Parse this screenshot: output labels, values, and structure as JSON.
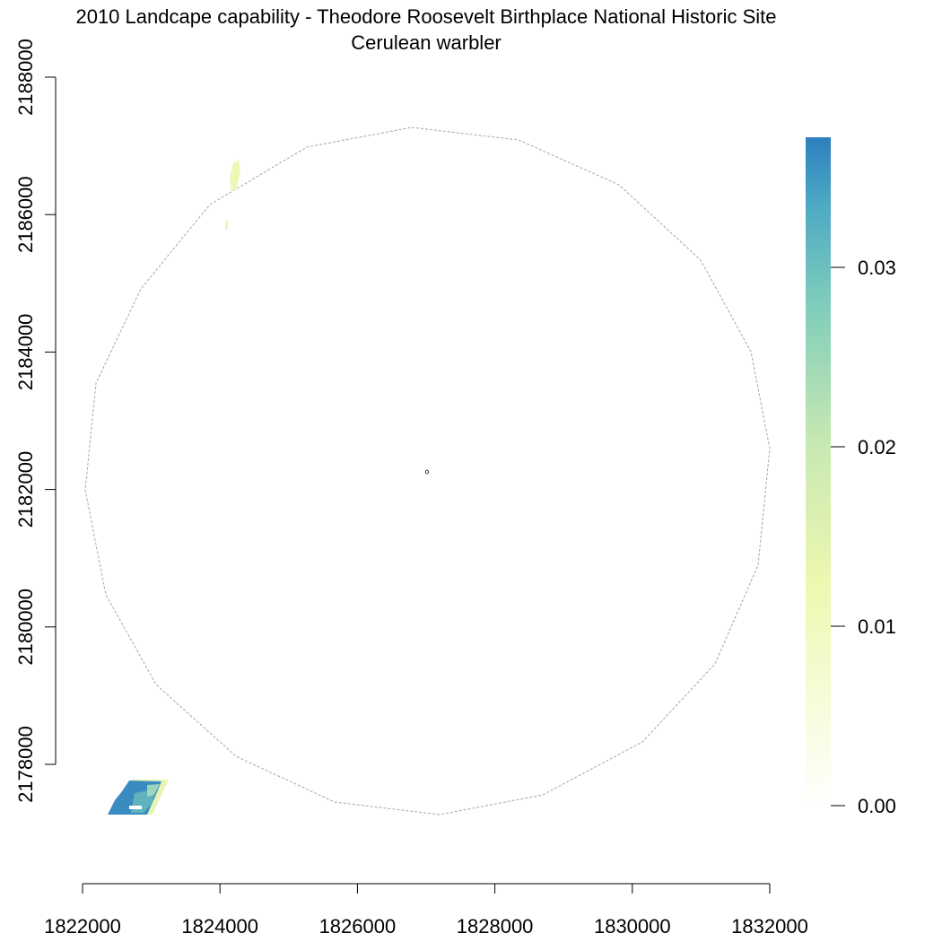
{
  "title": "2010 Landcape capability - Theodore Roosevelt Birthplace National Historic Site",
  "subtitle": "Cerulean warbler",
  "map": {
    "x_axis": {
      "range": [
        1822000,
        1832000
      ],
      "ticks": [
        "1822000",
        "1824000",
        "1826000",
        "1828000",
        "1830000",
        "1832000"
      ]
    },
    "y_axis": {
      "range": [
        2178000,
        2188000
      ],
      "ticks": [
        "2178000",
        "2180000",
        "2182000",
        "2184000",
        "2186000",
        "2188000"
      ]
    },
    "legend": {
      "ticks": [
        "0.00",
        "0.01",
        "0.02",
        "0.03"
      ],
      "palette": [
        "#FFFFFF",
        "#F7FCCF",
        "#EDF8B1",
        "#C7E9B4",
        "#7FCDBB",
        "#41B6C4",
        "#1D91C0"
      ]
    },
    "colors": {
      "boundary": "#A6A6A6",
      "high_capability": "#3A8CC0",
      "mid_capability": "#5FB2BE",
      "low_capability": "#E9F6B9"
    }
  }
}
